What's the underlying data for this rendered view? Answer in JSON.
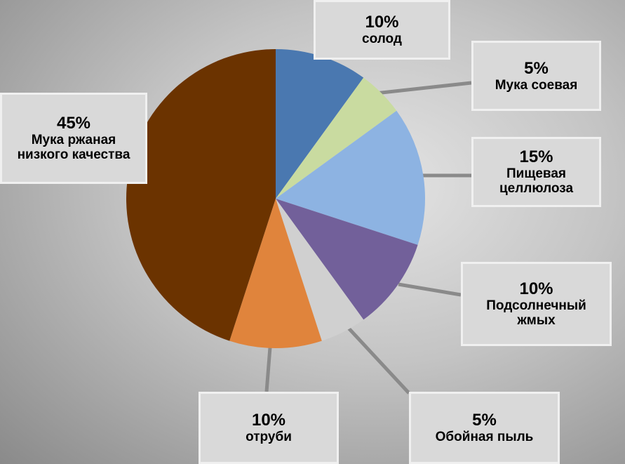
{
  "chart_data": {
    "type": "pie",
    "categories": [
      "солод",
      "Мука соевая",
      "Пищевая целлюлоза",
      "Подсолнечный жмых",
      "Обойная пыль",
      "отруби",
      "Мука ржаная низкого качества"
    ],
    "values": [
      10,
      5,
      15,
      10,
      5,
      10,
      45
    ],
    "value_labels": [
      "10%",
      "5%",
      "15%",
      "10%",
      "5%",
      "10%",
      "45%"
    ],
    "colors": [
      "#4a78b0",
      "#c9dba0",
      "#8db3e2",
      "#72609a",
      "#d0d0d0",
      "#e0843c",
      "#6b3300"
    ]
  }
}
